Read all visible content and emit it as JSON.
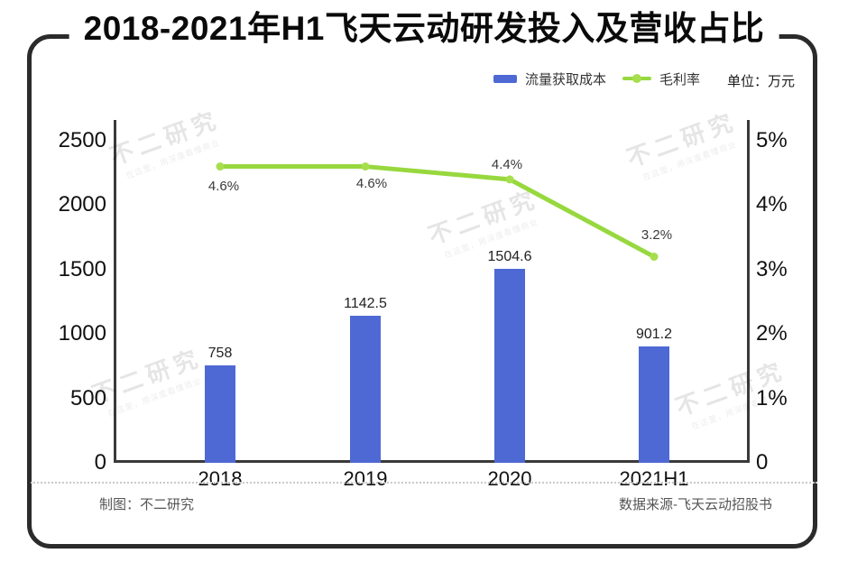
{
  "title": "2018-2021年H1飞天云动研发投入及营收占比",
  "legend": {
    "bar_label": "流量获取成本",
    "line_label": "毛利率",
    "unit": "单位：万元"
  },
  "chart_data": {
    "type": "bar+line",
    "categories": [
      "2018",
      "2019",
      "2020",
      "2021H1"
    ],
    "series": [
      {
        "name": "流量获取成本",
        "type": "bar",
        "axis": "left",
        "values": [
          758,
          1142.5,
          1504.6,
          901.2
        ],
        "labels": [
          "758",
          "1142.5",
          "1504.6",
          "901.2"
        ],
        "color": "#4e69d4"
      },
      {
        "name": "毛利率",
        "type": "line",
        "axis": "right",
        "values": [
          4.6,
          4.6,
          4.4,
          3.2
        ],
        "labels": [
          "4.6%",
          "4.6%",
          "4.4%",
          "3.2%"
        ],
        "color": "#97d83e",
        "marker_color": "#a6de4d"
      }
    ],
    "left_axis": {
      "ticks": [
        "2500",
        "2000",
        "1500",
        "1000",
        "500",
        "0"
      ],
      "min": 0,
      "max": 2500
    },
    "right_axis": {
      "ticks": [
        "5%",
        "4%",
        "3%",
        "2%",
        "1%",
        "0"
      ],
      "min": 0,
      "max": 5
    },
    "unit": "万元",
    "grid": false,
    "legend_position": "top-right"
  },
  "watermark": {
    "text": "不二研究",
    "subtext": "在这里，用深度看懂商业"
  },
  "footer": {
    "left": "制图：不二研究",
    "right": "数据来源-飞天云动招股书"
  },
  "colors": {
    "bar": "#4e69d4",
    "line": "#97d83e",
    "marker": "#a6de4d",
    "frame": "#2b2b2b",
    "axis": "#3a3a3a"
  }
}
